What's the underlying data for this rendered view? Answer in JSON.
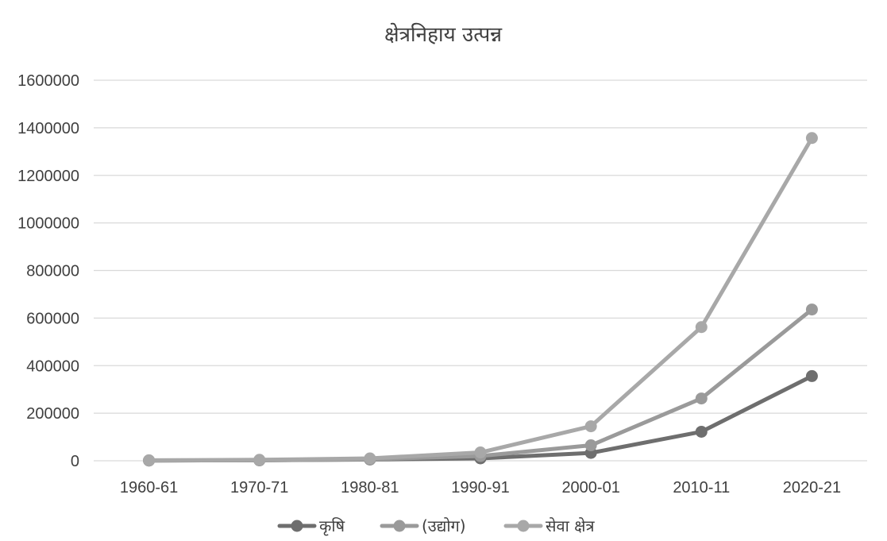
{
  "chart_data": {
    "type": "line",
    "title": "क्षेत्रनिहाय उत्पन्न",
    "xlabel": "",
    "ylabel": "",
    "categories": [
      "1960-61",
      "1970-71",
      "1980-81",
      "1990-91",
      "2000-01",
      "2010-11",
      "2020-21"
    ],
    "ylim": [
      0,
      1600000
    ],
    "yticks": [
      0,
      200000,
      400000,
      600000,
      800000,
      1000000,
      1200000,
      1400000,
      1600000
    ],
    "grid": true,
    "legend_position": "bottom",
    "series": [
      {
        "name": "कृषि",
        "color": "#6e6e6e",
        "values": [
          1000,
          2000,
          5000,
          10000,
          33000,
          122000,
          356000
        ]
      },
      {
        "name": "(उद्योग)",
        "color": "#9a9a9a",
        "values": [
          1000,
          2000,
          6000,
          20000,
          65000,
          262000,
          636000
        ]
      },
      {
        "name": "सेवा क्षेत्र",
        "color": "#a8a8a8",
        "values": [
          2000,
          4000,
          10000,
          35000,
          145000,
          562000,
          1357000
        ]
      }
    ]
  }
}
